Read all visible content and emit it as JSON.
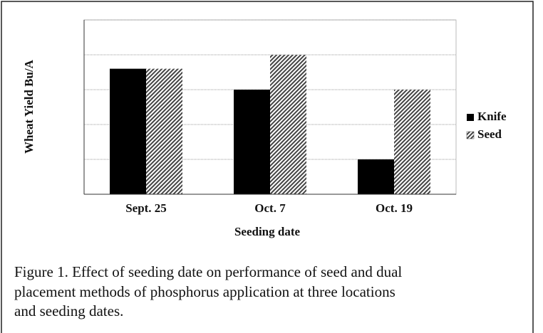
{
  "chart_data": {
    "type": "bar",
    "y_label": "Wheat Yield Bu/A",
    "x_label": "Seeding date",
    "caption": [
      "Figure 1.  Effect of seeding date on performance of seed and dual",
      "placement methods of phosphorus application at three locations",
      "and seeding dates."
    ],
    "categories": [
      "Sept. 25",
      "Oct. 7",
      "Oct. 19"
    ],
    "series": [
      {
        "name": "Knife",
        "color": "#000000",
        "values": [
          3.6,
          3.0,
          1.0
        ]
      },
      {
        "name": "Seed",
        "color": "#444444",
        "values": [
          3.6,
          4.0,
          3.0
        ]
      }
    ],
    "ylim": [
      0,
      5
    ],
    "yticks": [
      0,
      1,
      2,
      3,
      4,
      5
    ],
    "grid": true,
    "legend": "right"
  }
}
